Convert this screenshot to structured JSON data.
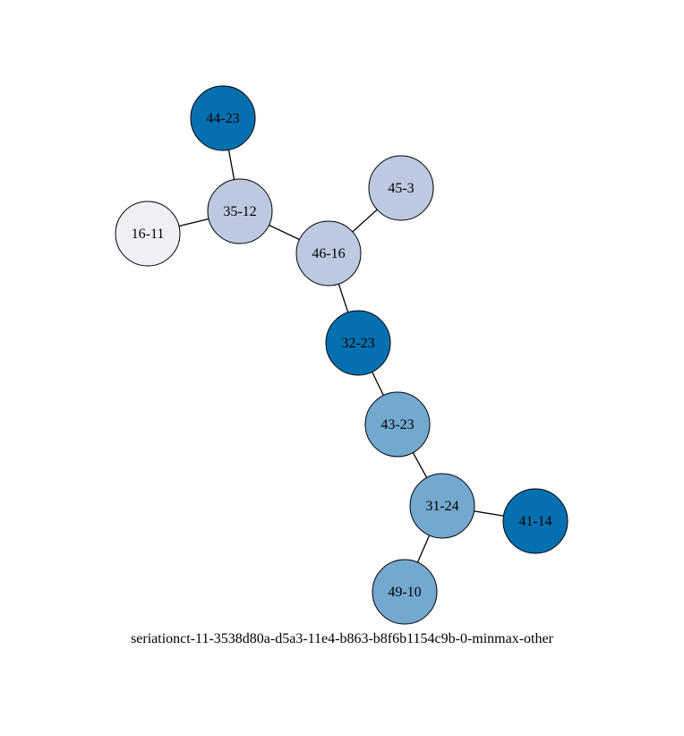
{
  "graph": {
    "caption": "seriationct-11-3538d80a-d5a3-11e4-b863-b8f6b1154c9b-0-minmax-other",
    "node_colors": {
      "dark": "#0570b0",
      "medium": "#74a9cf",
      "light": "#bdc9e1",
      "pale": "#f1eef6"
    },
    "edge_color": "#000000",
    "nodes": [
      {
        "id": "44-23",
        "label": "44-23",
        "shade": "dark"
      },
      {
        "id": "35-12",
        "label": "35-12",
        "shade": "light"
      },
      {
        "id": "16-11",
        "label": "16-11",
        "shade": "pale"
      },
      {
        "id": "45-3",
        "label": "45-3",
        "shade": "light"
      },
      {
        "id": "46-16",
        "label": "46-16",
        "shade": "light"
      },
      {
        "id": "32-23",
        "label": "32-23",
        "shade": "dark"
      },
      {
        "id": "43-23",
        "label": "43-23",
        "shade": "medium"
      },
      {
        "id": "31-24",
        "label": "31-24",
        "shade": "medium"
      },
      {
        "id": "41-14",
        "label": "41-14",
        "shade": "dark"
      },
      {
        "id": "49-10",
        "label": "49-10",
        "shade": "medium"
      }
    ],
    "edges": [
      [
        "44-23",
        "35-12"
      ],
      [
        "16-11",
        "35-12"
      ],
      [
        "35-12",
        "46-16"
      ],
      [
        "45-3",
        "46-16"
      ],
      [
        "46-16",
        "32-23"
      ],
      [
        "32-23",
        "43-23"
      ],
      [
        "43-23",
        "31-24"
      ],
      [
        "31-24",
        "41-14"
      ],
      [
        "31-24",
        "49-10"
      ]
    ]
  }
}
